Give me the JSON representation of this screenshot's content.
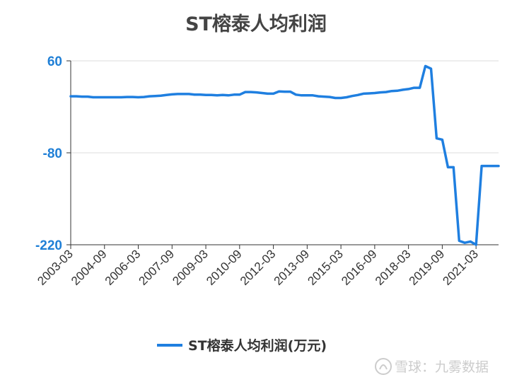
{
  "chart_data": {
    "type": "line",
    "title": "ST榕泰人均利润",
    "xlabel": "",
    "ylabel": "",
    "ylim": [
      -220,
      60
    ],
    "yticks": [
      60,
      -80,
      -220
    ],
    "xticks": [
      "2003-03",
      "2004-09",
      "2006-03",
      "2007-09",
      "2009-03",
      "2010-09",
      "2012-03",
      "2013-09",
      "2015-03",
      "2016-09",
      "2018-03",
      "2019-09",
      "2021-03"
    ],
    "grid": true,
    "legend_position": "bottom",
    "series": [
      {
        "name": "ST榕泰人均利润(万元)",
        "color": "#1f7fe0",
        "x": [
          "2003-03",
          "2003-06",
          "2003-09",
          "2003-12",
          "2004-03",
          "2004-06",
          "2004-09",
          "2004-12",
          "2005-03",
          "2005-06",
          "2005-09",
          "2005-12",
          "2006-03",
          "2006-06",
          "2006-09",
          "2006-12",
          "2007-03",
          "2007-06",
          "2007-09",
          "2007-12",
          "2008-03",
          "2008-06",
          "2008-09",
          "2008-12",
          "2009-03",
          "2009-06",
          "2009-09",
          "2009-12",
          "2010-03",
          "2010-06",
          "2010-09",
          "2010-12",
          "2011-03",
          "2011-06",
          "2011-09",
          "2011-12",
          "2012-03",
          "2012-06",
          "2012-09",
          "2012-12",
          "2013-03",
          "2013-06",
          "2013-09",
          "2013-12",
          "2014-03",
          "2014-06",
          "2014-09",
          "2014-12",
          "2015-03",
          "2015-06",
          "2015-09",
          "2015-12",
          "2016-03",
          "2016-06",
          "2016-09",
          "2016-12",
          "2017-03",
          "2017-06",
          "2017-09",
          "2017-12",
          "2018-03",
          "2018-06",
          "2018-09",
          "2018-12",
          "2019-03",
          "2019-06",
          "2019-09",
          "2019-12",
          "2020-03",
          "2020-06",
          "2020-09",
          "2020-12",
          "2021-03",
          "2021-06",
          "2021-09",
          "2021-12",
          "2022-03"
        ],
        "values": [
          6,
          6,
          5.5,
          5.5,
          4.5,
          4.5,
          4.5,
          4.5,
          4.5,
          4.5,
          5,
          5,
          4.5,
          5,
          6,
          6.5,
          7,
          8,
          9,
          9.5,
          9.5,
          9.5,
          8.5,
          8.5,
          8,
          8,
          7.5,
          8,
          7.5,
          8.5,
          8.5,
          12.5,
          12.5,
          12,
          11,
          10,
          10,
          13.5,
          13,
          13,
          8.5,
          7.5,
          7.5,
          7.5,
          6,
          5.5,
          5,
          3.5,
          3.5,
          4.5,
          6.5,
          8,
          10,
          10.5,
          11,
          12,
          12.5,
          14,
          14.5,
          16,
          17,
          19,
          19,
          52,
          48,
          -58,
          -60,
          -102,
          -102,
          -214,
          -217,
          -215,
          -220,
          -100,
          -100,
          -100,
          -100
        ]
      }
    ],
    "watermark": "雪球：九雾数据"
  }
}
